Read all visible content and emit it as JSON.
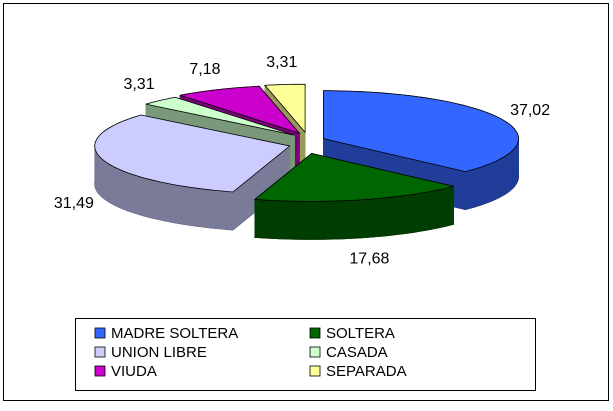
{
  "chart_data": {
    "type": "pie3d",
    "categories": [
      "MADRE SOLTERA",
      "SOLTERA",
      "UNION LIBRE",
      "CASADA",
      "VIUDA",
      "SEPARADA"
    ],
    "values": [
      37.02,
      17.68,
      31.49,
      3.31,
      7.18,
      3.31
    ],
    "value_labels": [
      "37,02",
      "17,68",
      "31,49",
      "3,31",
      "7,18",
      "3,31"
    ],
    "colors": [
      "#3366ff",
      "#006600",
      "#ccccff",
      "#ccffcc",
      "#cc00cc",
      "#ffff99"
    ],
    "legend": "bottom"
  }
}
